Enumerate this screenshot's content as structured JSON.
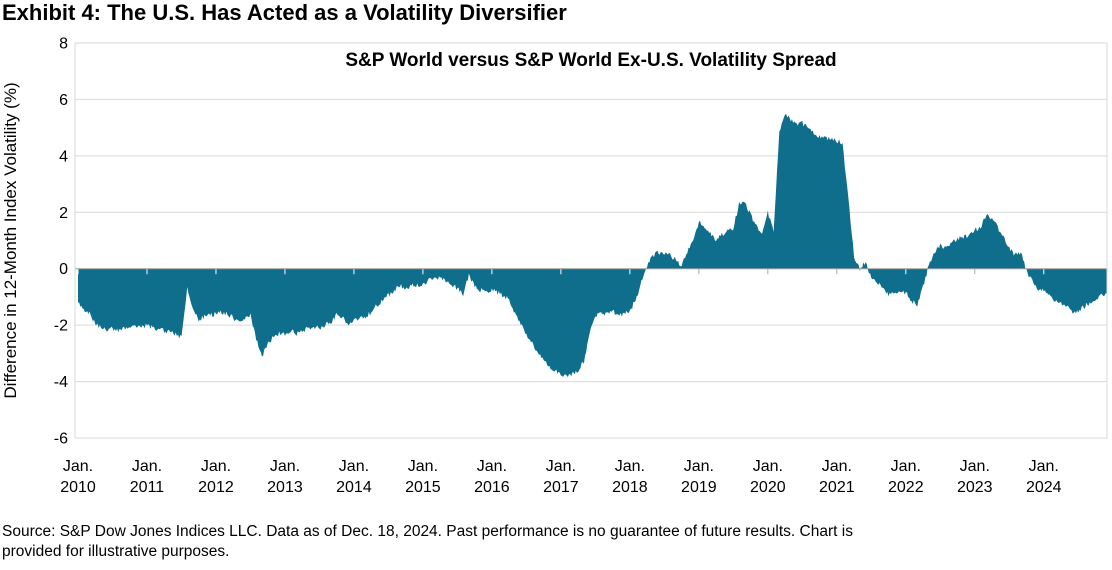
{
  "exhibit_title": "Exhibit 4: The U.S. Has Acted as a Volatility Diversifier",
  "footer": {
    "line1": "Source: S&P Dow Jones Indices LLC. Data as of Dec. 18, 2024. Past performance is no guarantee of future results. Chart is",
    "line2": "provided for illustrative purposes."
  },
  "chart_data": {
    "type": "area",
    "title": "S&P World versus S&P World Ex-U.S. Volatility Spread",
    "xlabel": "",
    "ylabel": "Difference in 12-Month Index Volatility (%)",
    "ylim": [
      -6,
      8
    ],
    "yticks": [
      8,
      6,
      4,
      2,
      0,
      -2,
      -4,
      -6
    ],
    "xticks": [
      {
        "month": "Jan.",
        "year": "2010"
      },
      {
        "month": "Jan.",
        "year": "2011"
      },
      {
        "month": "Jan.",
        "year": "2012"
      },
      {
        "month": "Jan.",
        "year": "2013"
      },
      {
        "month": "Jan.",
        "year": "2014"
      },
      {
        "month": "Jan.",
        "year": "2015"
      },
      {
        "month": "Jan.",
        "year": "2016"
      },
      {
        "month": "Jan.",
        "year": "2017"
      },
      {
        "month": "Jan.",
        "year": "2018"
      },
      {
        "month": "Jan.",
        "year": "2019"
      },
      {
        "month": "Jan.",
        "year": "2020"
      },
      {
        "month": "Jan.",
        "year": "2021"
      },
      {
        "month": "Jan.",
        "year": "2022"
      },
      {
        "month": "Jan.",
        "year": "2023"
      },
      {
        "month": "Jan.",
        "year": "2024"
      }
    ],
    "x_monthly_start": "2010-01",
    "x_monthly_end": "2024-12",
    "values_monthly": [
      -1.2,
      -1.5,
      -1.6,
      -1.9,
      -2.1,
      -2.15,
      -2.1,
      -2.2,
      -2.1,
      -2.0,
      -2.1,
      -2.05,
      -2.0,
      -2.1,
      -2.15,
      -2.2,
      -2.25,
      -2.3,
      -2.45,
      -0.7,
      -1.5,
      -1.8,
      -1.7,
      -1.65,
      -1.6,
      -1.55,
      -1.6,
      -1.75,
      -1.85,
      -1.75,
      -1.6,
      -2.5,
      -3.1,
      -2.7,
      -2.4,
      -2.3,
      -2.3,
      -2.2,
      -2.3,
      -2.25,
      -2.1,
      -2.05,
      -2.1,
      -2.0,
      -1.9,
      -1.6,
      -1.7,
      -1.95,
      -1.85,
      -1.8,
      -1.7,
      -1.55,
      -1.3,
      -1.1,
      -0.95,
      -0.75,
      -0.6,
      -0.7,
      -0.55,
      -0.6,
      -0.55,
      -0.4,
      -0.28,
      -0.35,
      -0.45,
      -0.55,
      -0.7,
      -0.9,
      -0.2,
      -0.65,
      -0.75,
      -0.8,
      -0.75,
      -0.85,
      -0.95,
      -1.1,
      -1.6,
      -2.0,
      -2.3,
      -2.6,
      -3.0,
      -3.2,
      -3.45,
      -3.6,
      -3.7,
      -3.85,
      -3.75,
      -3.6,
      -3.3,
      -2.3,
      -1.65,
      -1.55,
      -1.6,
      -1.5,
      -1.65,
      -1.6,
      -1.5,
      -1.1,
      -0.5,
      0.1,
      0.45,
      0.6,
      0.55,
      0.5,
      0.3,
      0.1,
      0.6,
      1.05,
      1.65,
      1.45,
      1.25,
      1.05,
      1.2,
      1.35,
      1.45,
      2.3,
      2.35,
      1.9,
      1.5,
      1.25,
      2.0,
      1.3,
      4.9,
      5.5,
      5.3,
      5.1,
      5.15,
      5.0,
      4.8,
      4.7,
      4.6,
      4.65,
      4.55,
      4.45,
      2.5,
      0.4,
      0.0,
      0.25,
      -0.3,
      -0.5,
      -0.6,
      -0.95,
      -0.8,
      -0.8,
      -0.85,
      -1.15,
      -1.25,
      -0.6,
      0.1,
      0.6,
      0.85,
      0.75,
      0.9,
      1.05,
      1.1,
      1.2,
      1.35,
      1.5,
      1.9,
      1.75,
      1.45,
      1.1,
      0.7,
      0.5,
      0.6,
      -0.1,
      -0.45,
      -0.7,
      -0.8,
      -1.0,
      -1.1,
      -1.2,
      -1.3,
      -1.5,
      -1.55,
      -1.35,
      -1.2,
      -1.05,
      -0.95,
      -0.9
    ],
    "colors": {
      "fill": "#0e6e8c",
      "gridline": "#d9d9d9",
      "plot_border": "#d9d9d9",
      "zero_axis": "#9b9b9b",
      "tick_on_white": "#a6a6a6",
      "tick_on_fill": "#ffffff",
      "text": "#000000"
    },
    "layout": {
      "grid": true,
      "legend": false,
      "zero_axis_crossing": true,
      "texture_noise": 0.09,
      "texture_subdiv": 5
    }
  }
}
